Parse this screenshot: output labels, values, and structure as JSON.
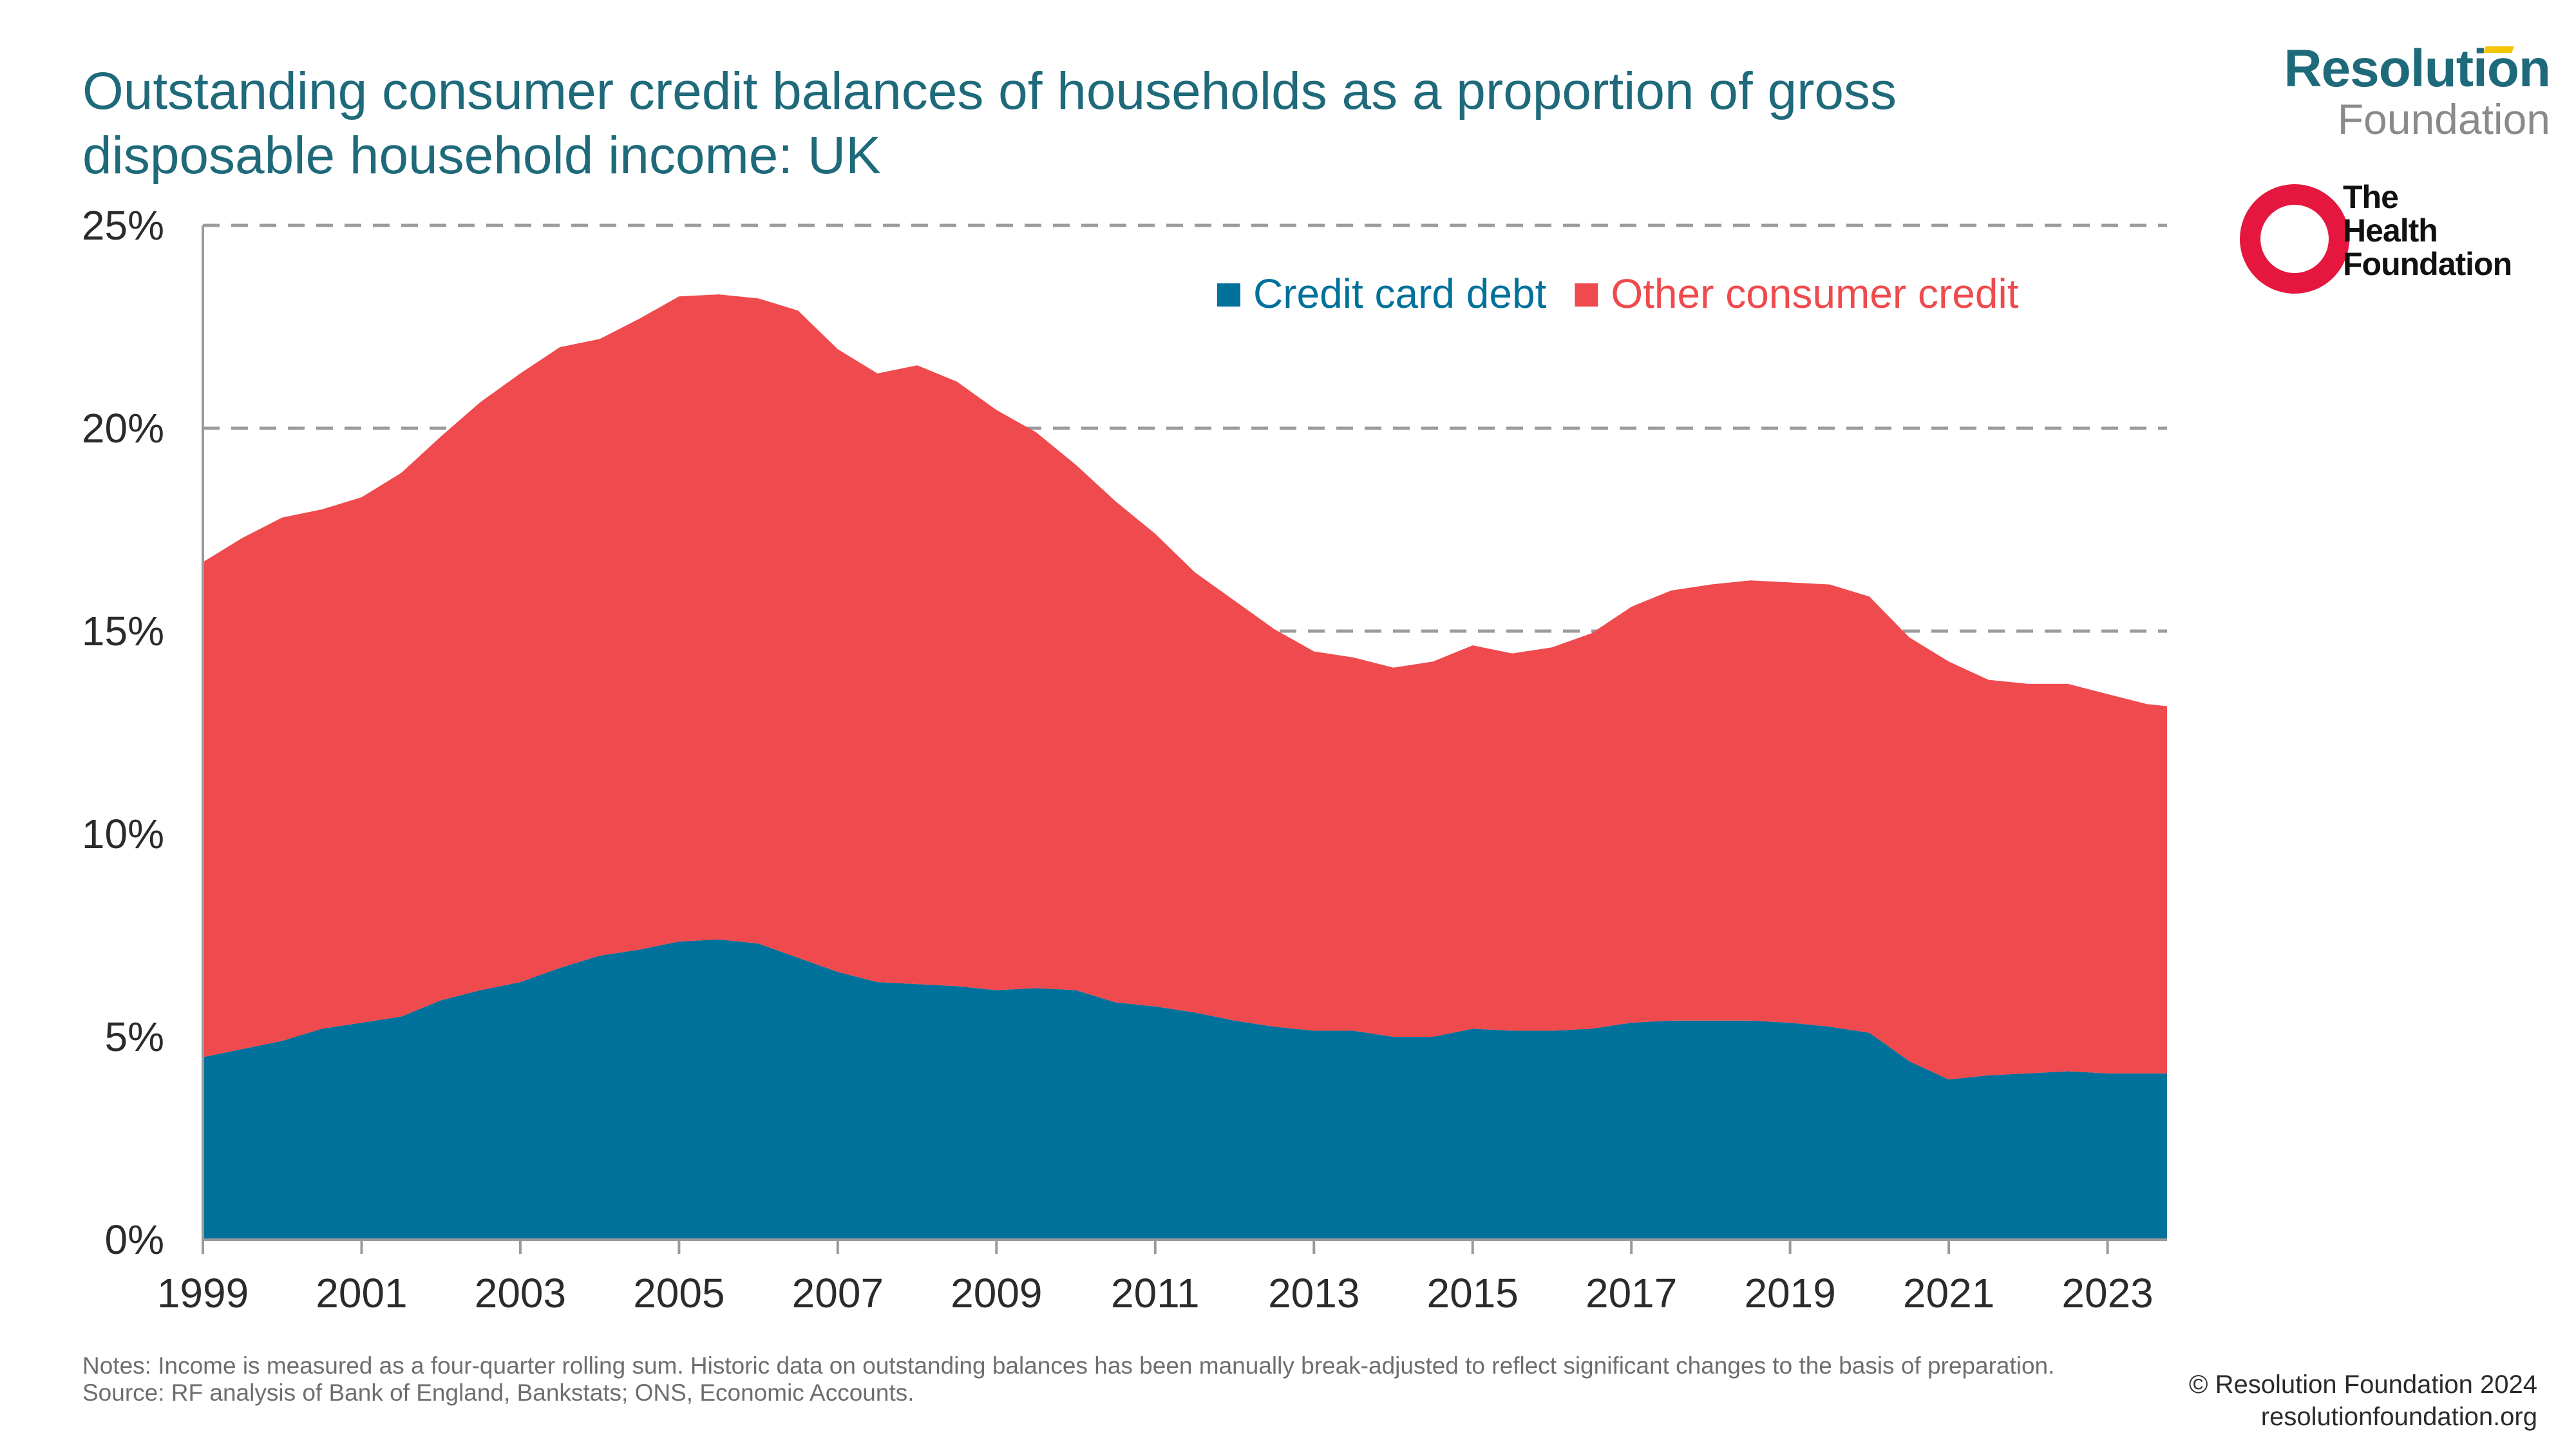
{
  "title": "Outstanding consumer credit balances of households as a proportion of gross disposable household income: UK",
  "logos": {
    "resolution": {
      "top": "Resolution",
      "bottom": "Foundation"
    },
    "health": {
      "line1": "The",
      "line2": "Health",
      "line3": "Foundation"
    }
  },
  "colors": {
    "credit_card": "#00719b",
    "other_credit": "#ef4a4d",
    "title": "#1f6a7a",
    "grid": "#9b9b9b"
  },
  "notes": {
    "line1": "Notes: Income is measured as a four-quarter rolling sum. Historic data on outstanding balances has been manually break-adjusted to reflect significant changes to the basis of preparation.",
    "line2": "Source: RF analysis of Bank of England, Bankstats; ONS, Economic Accounts."
  },
  "copyright": {
    "line1": "© Resolution Foundation 2024",
    "line2": "resolutionfoundation.org"
  },
  "chart_data": {
    "type": "area",
    "stacked": true,
    "title": "Outstanding consumer credit balances of households as a proportion of gross disposable household income: UK",
    "xlabel": "",
    "ylabel": "",
    "xlim": [
      1999,
      2023.75
    ],
    "ylim": [
      0,
      25
    ],
    "y_ticks": [
      0,
      5,
      10,
      15,
      20,
      25
    ],
    "y_tick_labels": [
      "0%",
      "5%",
      "10%",
      "15%",
      "20%",
      "25%"
    ],
    "x_ticks": [
      1999,
      2001,
      2003,
      2005,
      2007,
      2009,
      2011,
      2013,
      2015,
      2017,
      2019,
      2021,
      2023
    ],
    "x_tick_labels": [
      "1999",
      "2001",
      "2003",
      "2005",
      "2007",
      "2009",
      "2011",
      "2013",
      "2015",
      "2017",
      "2019",
      "2021",
      "2023"
    ],
    "grid": "horizontal dashed",
    "legend_position": "top-right",
    "x": [
      1999.0,
      1999.5,
      2000.0,
      2000.5,
      2001.0,
      2001.5,
      2002.0,
      2002.5,
      2003.0,
      2003.5,
      2004.0,
      2004.5,
      2005.0,
      2005.5,
      2006.0,
      2006.5,
      2007.0,
      2007.5,
      2008.0,
      2008.5,
      2009.0,
      2009.5,
      2010.0,
      2010.5,
      2011.0,
      2011.5,
      2012.0,
      2012.5,
      2013.0,
      2013.5,
      2014.0,
      2014.5,
      2015.0,
      2015.5,
      2016.0,
      2016.5,
      2017.0,
      2017.5,
      2018.0,
      2018.5,
      2019.0,
      2019.5,
      2020.0,
      2020.5,
      2021.0,
      2021.5,
      2022.0,
      2022.5,
      2023.0,
      2023.5,
      2023.75
    ],
    "series": [
      {
        "name": "Credit card debt",
        "color": "#00719b",
        "values": [
          4.5,
          4.7,
          4.9,
          5.2,
          5.35,
          5.5,
          5.9,
          6.15,
          6.35,
          6.7,
          7.0,
          7.15,
          7.35,
          7.4,
          7.3,
          6.95,
          6.6,
          6.35,
          6.3,
          6.25,
          6.15,
          6.2,
          6.15,
          5.85,
          5.75,
          5.6,
          5.4,
          5.25,
          5.15,
          5.15,
          5.0,
          5.0,
          5.2,
          5.15,
          5.15,
          5.2,
          5.35,
          5.4,
          5.4,
          5.4,
          5.35,
          5.25,
          5.1,
          4.4,
          3.95,
          4.05,
          4.1,
          4.15,
          4.1,
          4.1,
          4.1
        ]
      },
      {
        "name": "Other consumer credit",
        "color": "#ef4a4d",
        "values": [
          12.2,
          12.6,
          12.9,
          12.8,
          12.95,
          13.4,
          13.9,
          14.5,
          15.0,
          15.3,
          15.2,
          15.55,
          15.9,
          15.9,
          15.9,
          15.95,
          15.35,
          15.0,
          15.25,
          14.9,
          14.3,
          13.7,
          12.95,
          12.35,
          11.65,
          10.85,
          10.35,
          9.8,
          9.35,
          9.2,
          9.1,
          9.25,
          9.45,
          9.3,
          9.45,
          9.75,
          10.25,
          10.6,
          10.75,
          10.85,
          10.85,
          10.9,
          10.75,
          10.45,
          10.3,
          9.75,
          9.6,
          9.55,
          9.35,
          9.1,
          9.05
        ]
      }
    ]
  }
}
